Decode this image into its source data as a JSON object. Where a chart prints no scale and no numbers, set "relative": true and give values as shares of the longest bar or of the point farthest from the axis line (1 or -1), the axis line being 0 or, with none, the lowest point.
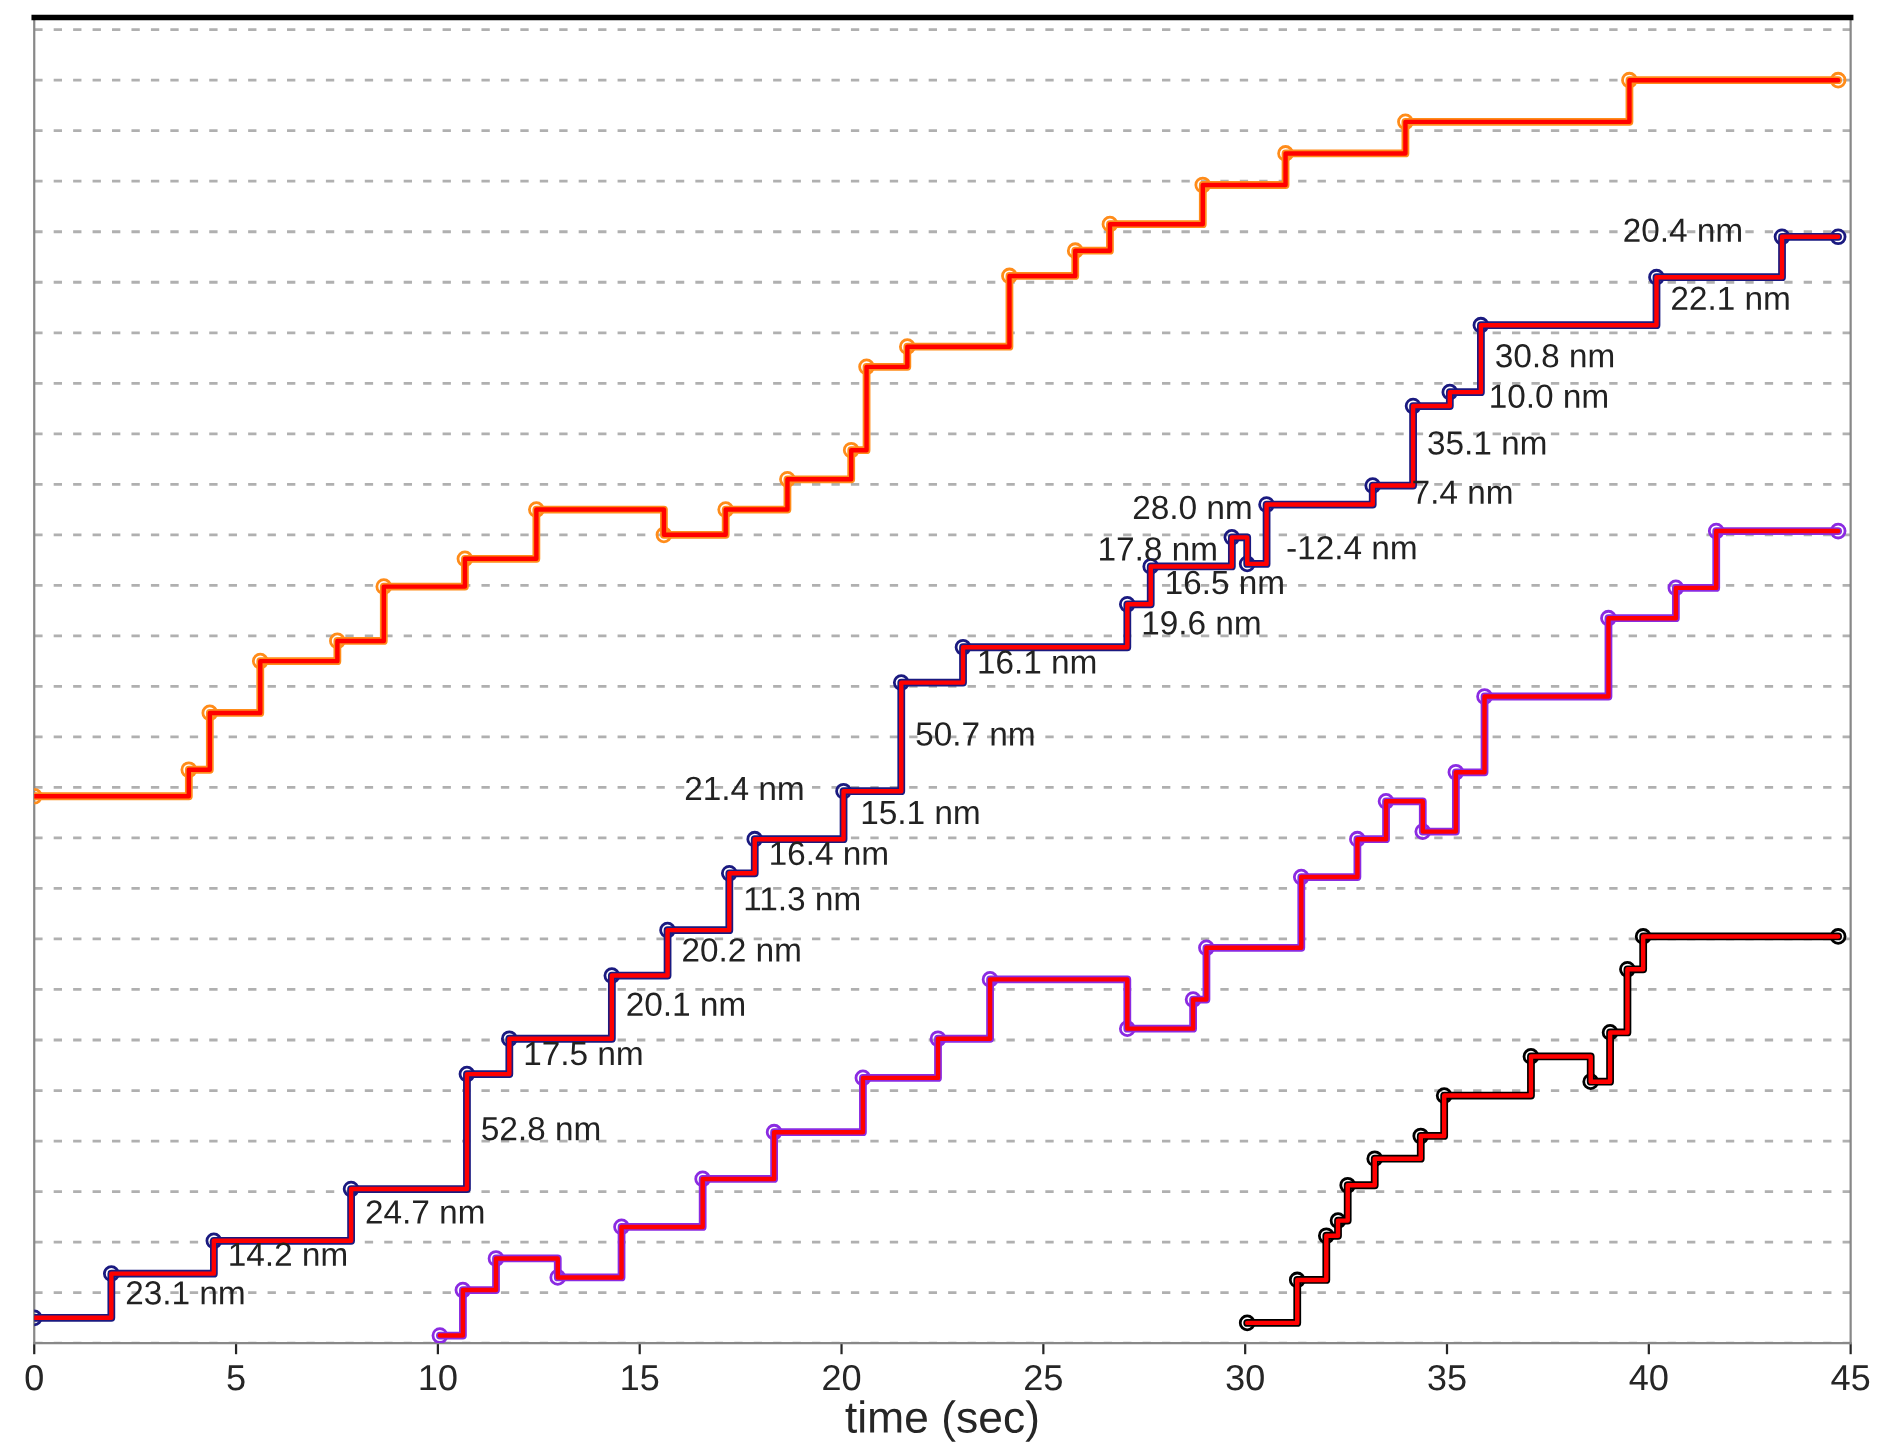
{
  "chart_data": {
    "type": "step",
    "relative": true,
    "xlabel": "time (sec)",
    "xlim": [
      0,
      45
    ],
    "xticks": [
      0,
      5,
      10,
      15,
      20,
      25,
      30,
      35,
      40,
      45
    ],
    "grid": "y",
    "series": [
      {
        "color": "#ff8c1a",
        "marker": "circle",
        "x": [
          0,
          3.83,
          4.35,
          5.6,
          7.51,
          8.66,
          10.67,
          12.44,
          15.6,
          17.13,
          18.66,
          20.24,
          20.62,
          21.63,
          24.16,
          25.79,
          26.65,
          28.95,
          31.0,
          33.97,
          39.52,
          44.69
        ],
        "values": [
          0.433,
          0.454,
          0.499,
          0.54,
          0.556,
          0.599,
          0.621,
          0.66,
          0.64,
          0.66,
          0.684,
          0.707,
          0.773,
          0.789,
          0.845,
          0.865,
          0.886,
          0.917,
          0.942,
          0.967,
          1.0,
          1.0
        ]
      },
      {
        "color": "#ff0000",
        "marker": "none",
        "x": [
          0,
          3.83,
          4.35,
          5.6,
          7.51,
          8.66,
          10.67,
          12.44,
          15.6,
          17.13,
          18.66,
          20.24,
          20.62,
          21.63,
          24.16,
          25.79,
          26.65,
          28.95,
          31.0,
          33.97,
          39.52,
          44.69
        ],
        "values": [
          0.433,
          0.454,
          0.499,
          0.54,
          0.556,
          0.599,
          0.621,
          0.66,
          0.64,
          0.66,
          0.684,
          0.707,
          0.773,
          0.789,
          0.845,
          0.865,
          0.886,
          0.917,
          0.942,
          0.967,
          1.0,
          1.0
        ]
      },
      {
        "color": "#1a1a80",
        "marker": "circle",
        "x": [
          0,
          1.91,
          4.45,
          7.85,
          10.72,
          11.77,
          14.31,
          15.69,
          17.22,
          17.85,
          20.05,
          21.48,
          23.01,
          27.08,
          27.66,
          29.67,
          30.05,
          30.53,
          33.16,
          34.16,
          35.07,
          35.84,
          40.19,
          43.3,
          44.69
        ],
        "values": [
          0.02,
          0.055,
          0.081,
          0.122,
          0.213,
          0.241,
          0.291,
          0.327,
          0.372,
          0.399,
          0.437,
          0.523,
          0.551,
          0.585,
          0.615,
          0.638,
          0.617,
          0.664,
          0.679,
          0.742,
          0.753,
          0.806,
          0.844,
          0.876,
          0.876
        ]
      },
      {
        "color": "#ff0000",
        "marker": "none",
        "x": [
          0,
          1.91,
          4.45,
          7.85,
          10.72,
          11.77,
          14.31,
          15.69,
          17.22,
          17.85,
          20.05,
          21.48,
          23.01,
          27.08,
          27.66,
          29.67,
          30.05,
          30.53,
          33.16,
          34.16,
          35.07,
          35.84,
          40.19,
          43.3,
          44.69
        ],
        "values": [
          0.02,
          0.055,
          0.081,
          0.122,
          0.213,
          0.241,
          0.291,
          0.327,
          0.372,
          0.399,
          0.437,
          0.523,
          0.551,
          0.585,
          0.615,
          0.638,
          0.617,
          0.664,
          0.679,
          0.742,
          0.753,
          0.806,
          0.844,
          0.876,
          0.876
        ]
      },
      {
        "color": "#8a2be2",
        "marker": "circle",
        "x": [
          10.05,
          10.62,
          11.44,
          12.97,
          14.55,
          16.56,
          18.33,
          20.53,
          22.39,
          23.68,
          27.08,
          28.71,
          29.04,
          31.39,
          32.78,
          33.49,
          34.4,
          35.22,
          35.93,
          39.0,
          40.67,
          41.67,
          44.69
        ],
        "values": [
          0.006,
          0.042,
          0.067,
          0.052,
          0.092,
          0.13,
          0.167,
          0.21,
          0.241,
          0.288,
          0.249,
          0.272,
          0.313,
          0.369,
          0.399,
          0.429,
          0.405,
          0.452,
          0.512,
          0.574,
          0.598,
          0.643,
          0.643
        ]
      },
      {
        "color": "#ff0000",
        "marker": "none",
        "x": [
          10.05,
          10.62,
          11.44,
          12.97,
          14.55,
          16.56,
          18.33,
          20.53,
          22.39,
          23.68,
          27.08,
          28.71,
          29.04,
          31.39,
          32.78,
          33.49,
          34.4,
          35.22,
          35.93,
          39.0,
          40.67,
          41.67,
          44.69
        ],
        "values": [
          0.006,
          0.042,
          0.067,
          0.052,
          0.092,
          0.13,
          0.167,
          0.21,
          0.241,
          0.288,
          0.249,
          0.272,
          0.313,
          0.369,
          0.399,
          0.429,
          0.405,
          0.452,
          0.512,
          0.574,
          0.598,
          0.643,
          0.643
        ]
      },
      {
        "color": "#000000",
        "marker": "circle",
        "x": [
          30.05,
          31.29,
          32.01,
          32.3,
          32.54,
          33.21,
          34.35,
          34.93,
          37.08,
          38.56,
          39.04,
          39.47,
          39.86,
          44.69
        ],
        "values": [
          0.016,
          0.05,
          0.085,
          0.097,
          0.125,
          0.146,
          0.164,
          0.196,
          0.227,
          0.207,
          0.246,
          0.296,
          0.322,
          0.322
        ]
      },
      {
        "color": "#ff0000",
        "marker": "none",
        "x": [
          30.05,
          31.29,
          32.01,
          32.3,
          32.54,
          33.21,
          34.35,
          34.93,
          37.08,
          38.56,
          39.04,
          39.47,
          39.86,
          44.69
        ],
        "values": [
          0.016,
          0.05,
          0.085,
          0.097,
          0.125,
          0.146,
          0.164,
          0.196,
          0.227,
          0.207,
          0.246,
          0.296,
          0.322,
          0.322
        ]
      }
    ],
    "annotations": [
      {
        "text": "23.1 nm",
        "x": 1.91,
        "y": 0.0375
      },
      {
        "text": "14.2 nm",
        "x": 4.45,
        "y": 0.068
      },
      {
        "text": "24.7 nm",
        "x": 7.85,
        "y": 0.1015
      },
      {
        "text": "52.8 nm",
        "x": 10.72,
        "y": 0.1675
      },
      {
        "text": "17.5 nm",
        "x": 11.77,
        "y": 0.227
      },
      {
        "text": "20.1 nm",
        "x": 14.31,
        "y": 0.266
      },
      {
        "text": "20.2 nm",
        "x": 15.69,
        "y": 0.309
      },
      {
        "text": "11.3 nm",
        "x": 17.22,
        "y": 0.3495
      },
      {
        "text": "16.4 nm",
        "x": 17.85,
        "y": 0.3855
      },
      {
        "text": "15.1 nm",
        "x": 19.5,
        "y": 0.399
      },
      {
        "text": "21.4 nm",
        "x": 20.05,
        "y": 0.418
      },
      {
        "text": "50.7 nm",
        "x": 21.48,
        "y": 0.48
      },
      {
        "text": "16.1 nm",
        "x": 23.01,
        "y": 0.537
      },
      {
        "text": "19.6 nm",
        "x": 27.08,
        "y": 0.568
      },
      {
        "text": "16.5 nm",
        "x": 27.66,
        "y": 0.6
      },
      {
        "text": "-12.4 nm",
        "x": 30.05,
        "y": 0.6275
      },
      {
        "text": "28.0 nm",
        "x": 30.53,
        "y": 0.6405
      },
      {
        "text": "17.8 nm",
        "x": 29.67,
        "y": 0.6265
      },
      {
        "text": "7.4 nm",
        "x": 33.16,
        "y": 0.6715
      },
      {
        "text": "35.1 nm",
        "x": 34.16,
        "y": 0.7105
      },
      {
        "text": "10.0 nm",
        "x": 35.07,
        "y": 0.7475
      },
      {
        "text": "30.8 nm",
        "x": 35.84,
        "y": 0.7795
      },
      {
        "text": "22.1 nm",
        "x": 40.19,
        "y": 0.825
      },
      {
        "text": "20.4 nm",
        "x": 43.3,
        "y": 0.86
      }
    ]
  }
}
